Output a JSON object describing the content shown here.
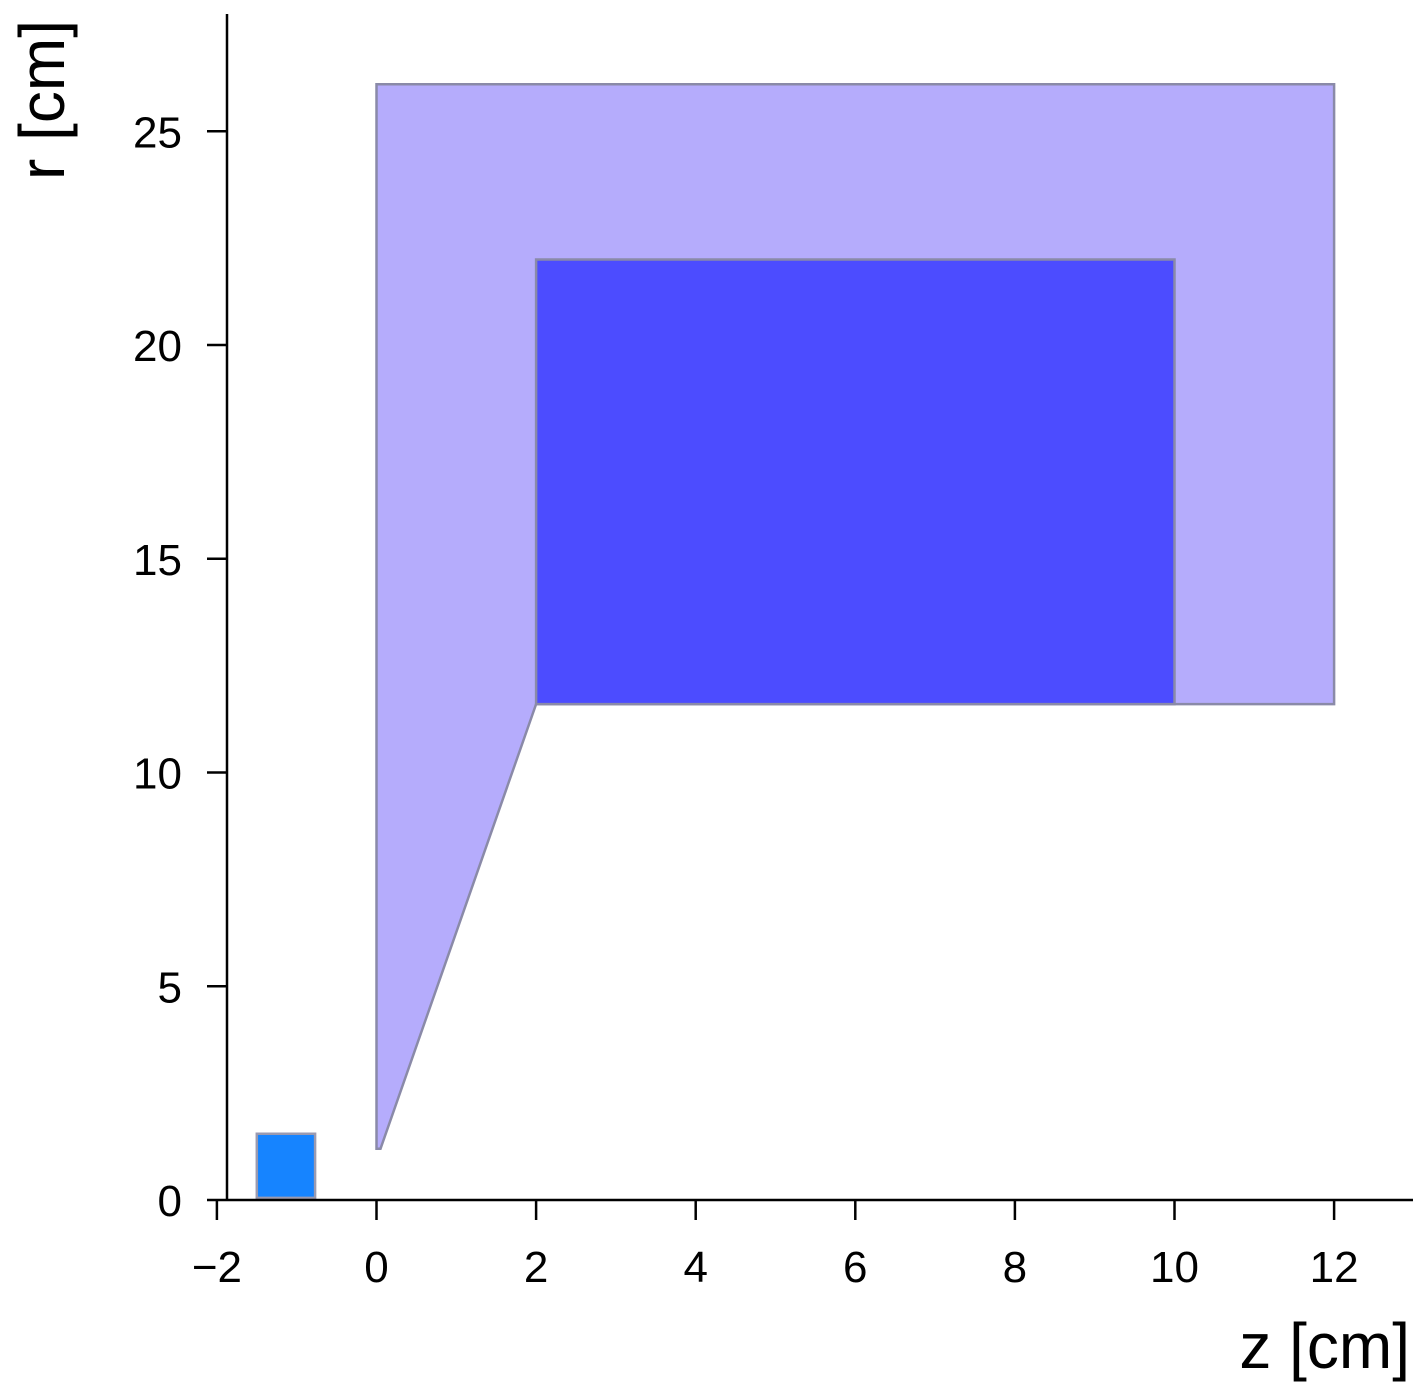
{
  "chart_data": {
    "type": "diagram",
    "xlabel": "z [cm]",
    "ylabel": "r [cm]",
    "xlim": [
      -2,
      13
    ],
    "ylim": [
      0,
      27.5
    ],
    "xticks": [
      -2,
      0,
      2,
      4,
      6,
      8,
      10,
      12
    ],
    "xtick_labels": [
      "−2",
      "0",
      "2",
      "4",
      "6",
      "8",
      "10",
      "12"
    ],
    "yticks": [
      0,
      5,
      10,
      15,
      20,
      25
    ],
    "ytick_labels": [
      "0",
      "5",
      "10",
      "15",
      "20",
      "25"
    ],
    "shapes": [
      {
        "name": "outer-region",
        "color": "#b5acfc",
        "stroke": "#8a8aa8",
        "points": [
          [
            0,
            1.2
          ],
          [
            0,
            26.1
          ],
          [
            12,
            26.1
          ],
          [
            12,
            11.6
          ],
          [
            2,
            11.6
          ],
          [
            0.05,
            1.2
          ]
        ]
      },
      {
        "name": "inner-block",
        "color": "#4c4cff",
        "stroke": "#8a8aa8",
        "points": [
          [
            2,
            11.6
          ],
          [
            2,
            22
          ],
          [
            10,
            22
          ],
          [
            10,
            11.6
          ]
        ]
      },
      {
        "name": "small-square",
        "color": "#1684ff",
        "stroke": "#9a9ab0",
        "points": [
          [
            -1.5,
            0.05
          ],
          [
            -1.5,
            1.55
          ],
          [
            -0.77,
            1.55
          ],
          [
            -0.77,
            0.05
          ]
        ]
      }
    ]
  }
}
